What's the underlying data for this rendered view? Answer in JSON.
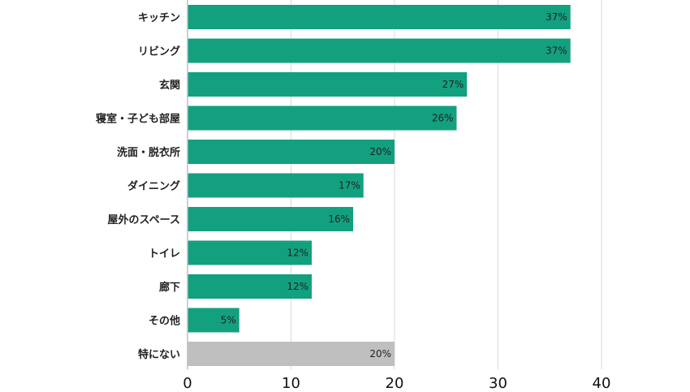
{
  "chart_data": {
    "type": "bar",
    "orientation": "horizontal",
    "categories": [
      "キッチン",
      "リビング",
      "玄関",
      "寝室・子ども部屋",
      "洗面・脱衣所",
      "ダイニング",
      "屋外のスペース",
      "トイレ",
      "廊下",
      "その他",
      "特にない"
    ],
    "values": [
      37,
      37,
      27,
      26,
      20,
      17,
      16,
      12,
      12,
      5,
      20
    ],
    "value_labels": [
      "37%",
      "37%",
      "27%",
      "26%",
      "20%",
      "17%",
      "16%",
      "12%",
      "12%",
      "5%",
      "20%"
    ],
    "bar_colors": [
      "#13a07f",
      "#13a07f",
      "#13a07f",
      "#13a07f",
      "#13a07f",
      "#13a07f",
      "#13a07f",
      "#13a07f",
      "#13a07f",
      "#13a07f",
      "#bfbfbf"
    ],
    "xlim": [
      0,
      40
    ],
    "xticks": [
      0,
      10,
      20,
      30,
      40
    ],
    "xtick_labels": [
      "0",
      "10",
      "20",
      "30",
      "40"
    ],
    "grid": true,
    "title": "",
    "xlabel": "",
    "ylabel": ""
  }
}
